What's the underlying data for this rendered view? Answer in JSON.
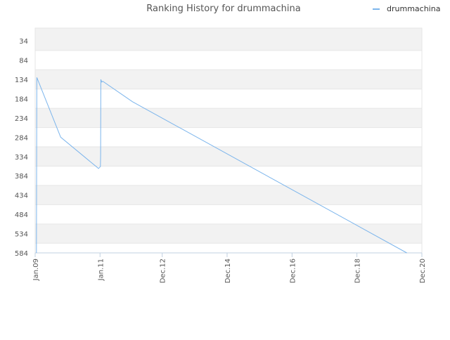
{
  "chart_data": {
    "type": "line",
    "title": "Ranking History for drummachina",
    "xlabel": "",
    "ylabel": "",
    "y_reversed": true,
    "ylim": [
      584,
      34
    ],
    "y_ticks": [
      34,
      84,
      134,
      184,
      234,
      284,
      334,
      384,
      434,
      484,
      534,
      584
    ],
    "y_tick_labels": [
      "34",
      "84",
      "134",
      "184",
      "234",
      "284",
      "334",
      "384",
      "434",
      "484",
      "534",
      "584"
    ],
    "xlim": [
      "2009-01",
      "2020-12"
    ],
    "x_ticks": [
      "2009-01",
      "2011-01",
      "2012-12",
      "2014-12",
      "2016-12",
      "2018-12",
      "2020-12"
    ],
    "x_tick_labels": [
      "Jan.09",
      "Jan.11",
      "Dec.12",
      "Dec.14",
      "Dec.16",
      "Dec.18",
      "Dec.20"
    ],
    "grid": true,
    "alternating_bands": true,
    "legend_position": "top-right",
    "series": [
      {
        "name": "drummachina",
        "color": "#7cb5ec",
        "points": [
          {
            "x": "2009-01-15",
            "y": 584
          },
          {
            "x": "2009-01-20",
            "y": 129
          },
          {
            "x": "2009-10-15",
            "y": 284
          },
          {
            "x": "2010-12-15",
            "y": 365
          },
          {
            "x": "2011-01-05",
            "y": 360
          },
          {
            "x": "2011-01-08",
            "y": 330
          },
          {
            "x": "2011-01-10",
            "y": 134
          },
          {
            "x": "2011-01-20",
            "y": 141
          },
          {
            "x": "2011-02-01",
            "y": 139
          },
          {
            "x": "2012-01-01",
            "y": 192
          },
          {
            "x": "2020-06-15",
            "y": 584
          }
        ]
      }
    ]
  }
}
